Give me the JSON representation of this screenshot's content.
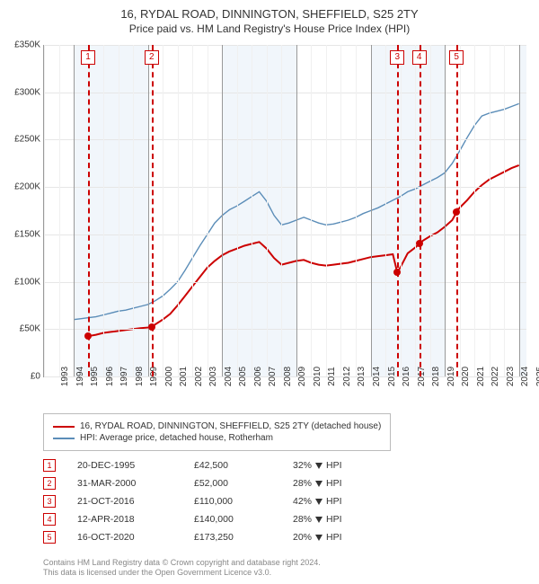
{
  "title": "16, RYDAL ROAD, DINNINGTON, SHEFFIELD, S25 2TY",
  "subtitle": "Price paid vs. HM Land Registry's House Price Index (HPI)",
  "chart": {
    "type": "line",
    "background_color": "#ffffff",
    "grid_color": "#e6e6e6",
    "band_color": "#e8f0f8",
    "xlim": [
      1993,
      2025.5
    ],
    "ylim": [
      0,
      350000
    ],
    "ytick_step": 50000,
    "yticks": [
      {
        "v": 0,
        "label": "£0"
      },
      {
        "v": 50000,
        "label": "£50K"
      },
      {
        "v": 100000,
        "label": "£100K"
      },
      {
        "v": 150000,
        "label": "£150K"
      },
      {
        "v": 200000,
        "label": "£200K"
      },
      {
        "v": 250000,
        "label": "£250K"
      },
      {
        "v": 300000,
        "label": "£300K"
      },
      {
        "v": 350000,
        "label": "£350K"
      }
    ],
    "xticks_major": [
      1995,
      2000,
      2005,
      2010,
      2015,
      2020,
      2025
    ],
    "xticks_all": [
      1993,
      1994,
      1995,
      1996,
      1997,
      1998,
      1999,
      2000,
      2001,
      2002,
      2003,
      2004,
      2005,
      2006,
      2007,
      2008,
      2009,
      2010,
      2011,
      2012,
      2013,
      2014,
      2015,
      2016,
      2017,
      2018,
      2019,
      2020,
      2021,
      2022,
      2023,
      2024,
      2025
    ],
    "series": [
      {
        "name": "16, RYDAL ROAD, DINNINGTON, SHEFFIELD, S25 2TY (detached house)",
        "color": "#cc0000",
        "line_width": 2,
        "points": [
          [
            1995.97,
            42500
          ],
          [
            1996.5,
            44000
          ],
          [
            1997.0,
            46000
          ],
          [
            1997.5,
            47000
          ],
          [
            1998.0,
            48000
          ],
          [
            1998.5,
            49000
          ],
          [
            1999.0,
            50000
          ],
          [
            1999.5,
            51000
          ],
          [
            2000.25,
            52000
          ],
          [
            2000.5,
            55000
          ],
          [
            2001.0,
            60000
          ],
          [
            2001.5,
            66000
          ],
          [
            2002.0,
            75000
          ],
          [
            2002.5,
            85000
          ],
          [
            2003.0,
            95000
          ],
          [
            2003.5,
            105000
          ],
          [
            2004.0,
            115000
          ],
          [
            2004.5,
            122000
          ],
          [
            2005.0,
            128000
          ],
          [
            2005.5,
            132000
          ],
          [
            2006.0,
            135000
          ],
          [
            2006.5,
            138000
          ],
          [
            2007.0,
            140000
          ],
          [
            2007.5,
            142000
          ],
          [
            2008.0,
            135000
          ],
          [
            2008.5,
            125000
          ],
          [
            2009.0,
            118000
          ],
          [
            2009.5,
            120000
          ],
          [
            2010.0,
            122000
          ],
          [
            2010.5,
            123000
          ],
          [
            2011.0,
            120000
          ],
          [
            2011.5,
            118000
          ],
          [
            2012.0,
            117000
          ],
          [
            2012.5,
            118000
          ],
          [
            2013.0,
            119000
          ],
          [
            2013.5,
            120000
          ],
          [
            2014.0,
            122000
          ],
          [
            2014.5,
            124000
          ],
          [
            2015.0,
            126000
          ],
          [
            2015.5,
            127000
          ],
          [
            2016.0,
            128000
          ],
          [
            2016.5,
            129000
          ],
          [
            2016.8,
            110000
          ],
          [
            2017.0,
            115000
          ],
          [
            2017.5,
            130000
          ],
          [
            2018.0,
            136000
          ],
          [
            2018.28,
            140000
          ],
          [
            2018.5,
            143000
          ],
          [
            2019.0,
            148000
          ],
          [
            2019.5,
            152000
          ],
          [
            2020.0,
            158000
          ],
          [
            2020.5,
            165000
          ],
          [
            2020.79,
            173250
          ],
          [
            2021.0,
            178000
          ],
          [
            2021.5,
            186000
          ],
          [
            2022.0,
            195000
          ],
          [
            2022.5,
            202000
          ],
          [
            2023.0,
            208000
          ],
          [
            2023.5,
            212000
          ],
          [
            2024.0,
            216000
          ],
          [
            2024.5,
            220000
          ],
          [
            2025.0,
            223000
          ]
        ]
      },
      {
        "name": "HPI: Average price, detached house, Rotherham",
        "color": "#5b8db8",
        "line_width": 1.4,
        "points": [
          [
            1995.0,
            60000
          ],
          [
            1995.5,
            61000
          ],
          [
            1996.0,
            62000
          ],
          [
            1996.5,
            63000
          ],
          [
            1997.0,
            65000
          ],
          [
            1997.5,
            67000
          ],
          [
            1998.0,
            69000
          ],
          [
            1998.5,
            70000
          ],
          [
            1999.0,
            72000
          ],
          [
            1999.5,
            74000
          ],
          [
            2000.0,
            76000
          ],
          [
            2000.5,
            80000
          ],
          [
            2001.0,
            85000
          ],
          [
            2001.5,
            92000
          ],
          [
            2002.0,
            100000
          ],
          [
            2002.5,
            112000
          ],
          [
            2003.0,
            125000
          ],
          [
            2003.5,
            138000
          ],
          [
            2004.0,
            150000
          ],
          [
            2004.5,
            162000
          ],
          [
            2005.0,
            170000
          ],
          [
            2005.5,
            176000
          ],
          [
            2006.0,
            180000
          ],
          [
            2006.5,
            185000
          ],
          [
            2007.0,
            190000
          ],
          [
            2007.5,
            195000
          ],
          [
            2008.0,
            185000
          ],
          [
            2008.5,
            170000
          ],
          [
            2009.0,
            160000
          ],
          [
            2009.5,
            162000
          ],
          [
            2010.0,
            165000
          ],
          [
            2010.5,
            168000
          ],
          [
            2011.0,
            165000
          ],
          [
            2011.5,
            162000
          ],
          [
            2012.0,
            160000
          ],
          [
            2012.5,
            161000
          ],
          [
            2013.0,
            163000
          ],
          [
            2013.5,
            165000
          ],
          [
            2014.0,
            168000
          ],
          [
            2014.5,
            172000
          ],
          [
            2015.0,
            175000
          ],
          [
            2015.5,
            178000
          ],
          [
            2016.0,
            182000
          ],
          [
            2016.5,
            186000
          ],
          [
            2017.0,
            190000
          ],
          [
            2017.5,
            195000
          ],
          [
            2018.0,
            198000
          ],
          [
            2018.5,
            202000
          ],
          [
            2019.0,
            206000
          ],
          [
            2019.5,
            210000
          ],
          [
            2020.0,
            215000
          ],
          [
            2020.5,
            225000
          ],
          [
            2021.0,
            238000
          ],
          [
            2021.5,
            252000
          ],
          [
            2022.0,
            265000
          ],
          [
            2022.5,
            275000
          ],
          [
            2023.0,
            278000
          ],
          [
            2023.5,
            280000
          ],
          [
            2024.0,
            282000
          ],
          [
            2024.5,
            285000
          ],
          [
            2025.0,
            288000
          ]
        ]
      }
    ],
    "sale_markers": [
      {
        "n": "1",
        "x": 1995.97,
        "y": 42500
      },
      {
        "n": "2",
        "x": 2000.25,
        "y": 52000
      },
      {
        "n": "3",
        "x": 2016.8,
        "y": 110000
      },
      {
        "n": "4",
        "x": 2018.28,
        "y": 140000
      },
      {
        "n": "5",
        "x": 2020.79,
        "y": 173250
      }
    ]
  },
  "legend": [
    {
      "color": "#cc0000",
      "label": "16, RYDAL ROAD, DINNINGTON, SHEFFIELD, S25 2TY (detached house)"
    },
    {
      "color": "#5b8db8",
      "label": "HPI: Average price, detached house, Rotherham"
    }
  ],
  "sales_table": [
    {
      "n": "1",
      "date": "20-DEC-1995",
      "price": "£42,500",
      "delta": "32%",
      "rel": "HPI"
    },
    {
      "n": "2",
      "date": "31-MAR-2000",
      "price": "£52,000",
      "delta": "28%",
      "rel": "HPI"
    },
    {
      "n": "3",
      "date": "21-OCT-2016",
      "price": "£110,000",
      "delta": "42%",
      "rel": "HPI"
    },
    {
      "n": "4",
      "date": "12-APR-2018",
      "price": "£140,000",
      "delta": "28%",
      "rel": "HPI"
    },
    {
      "n": "5",
      "date": "16-OCT-2020",
      "price": "£173,250",
      "delta": "20%",
      "rel": "HPI"
    }
  ],
  "footer": {
    "line1": "Contains HM Land Registry data © Crown copyright and database right 2024.",
    "line2": "This data is licensed under the Open Government Licence v3.0."
  }
}
